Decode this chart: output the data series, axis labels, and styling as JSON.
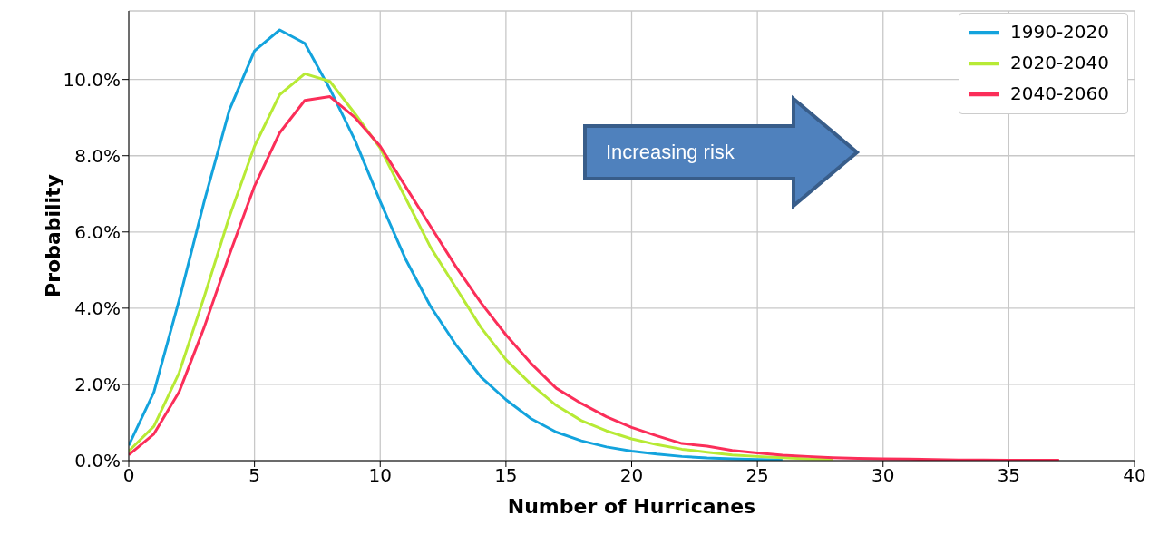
{
  "chart_data": {
    "type": "line",
    "xlabel": "Number of Hurricanes",
    "ylabel": "Probability",
    "annotations": [
      "Increasing risk"
    ],
    "x": [
      0,
      1,
      2,
      3,
      4,
      5,
      6,
      7,
      8,
      9,
      10,
      11,
      12,
      13,
      14,
      15,
      16,
      17,
      18,
      19,
      20,
      21,
      22,
      23,
      24,
      25,
      26,
      27,
      28,
      29,
      30,
      31,
      32,
      33,
      34,
      35,
      36,
      37
    ],
    "series": [
      {
        "name": "1990-2020",
        "color": "#13a3dd",
        "values": [
          0.4,
          1.8,
          4.2,
          6.8,
          9.2,
          10.75,
          11.3,
          10.95,
          9.75,
          8.4,
          6.8,
          5.3,
          4.05,
          3.05,
          2.2,
          1.6,
          1.1,
          0.75,
          0.52,
          0.36,
          0.25,
          0.17,
          0.11,
          0.07,
          0.05,
          0.03,
          0.02,
          null,
          null,
          null,
          null,
          null,
          null,
          null,
          null,
          null,
          null,
          null
        ]
      },
      {
        "name": "2020-2040",
        "color": "#b7ea35",
        "values": [
          0.25,
          0.9,
          2.3,
          4.3,
          6.4,
          8.25,
          9.6,
          10.15,
          9.95,
          9.1,
          8.2,
          6.9,
          5.6,
          4.55,
          3.5,
          2.65,
          2.0,
          1.45,
          1.05,
          0.78,
          0.57,
          0.42,
          0.3,
          0.22,
          0.15,
          0.11,
          0.08,
          0.05,
          0.04,
          null,
          null,
          null,
          null,
          null,
          null,
          null,
          null,
          null
        ]
      },
      {
        "name": "2040-2060",
        "color": "#fb2e59",
        "values": [
          0.15,
          0.7,
          1.8,
          3.5,
          5.4,
          7.2,
          8.6,
          9.45,
          9.55,
          9.0,
          8.25,
          7.2,
          6.15,
          5.1,
          4.15,
          3.3,
          2.55,
          1.9,
          1.5,
          1.15,
          0.87,
          0.65,
          0.45,
          0.38,
          0.27,
          0.2,
          0.14,
          0.11,
          0.08,
          0.06,
          0.05,
          0.04,
          0.03,
          0.02,
          0.02,
          0.01,
          0.01,
          0.01
        ]
      }
    ],
    "xlim": [
      0,
      40
    ],
    "xticks": [
      0,
      5,
      10,
      15,
      20,
      25,
      30,
      35,
      40
    ],
    "ylim": [
      0,
      11.8
    ],
    "yticks": [
      {
        "value": 0,
        "label": "0.0%"
      },
      {
        "value": 2,
        "label": "2.0%"
      },
      {
        "value": 4,
        "label": "4.0%"
      },
      {
        "value": 6,
        "label": "6.0%"
      },
      {
        "value": 8,
        "label": "8.0%"
      },
      {
        "value": 10,
        "label": "10.0%"
      }
    ],
    "grid": true,
    "legend": "top right",
    "marker": "none",
    "line_style": "solid"
  }
}
